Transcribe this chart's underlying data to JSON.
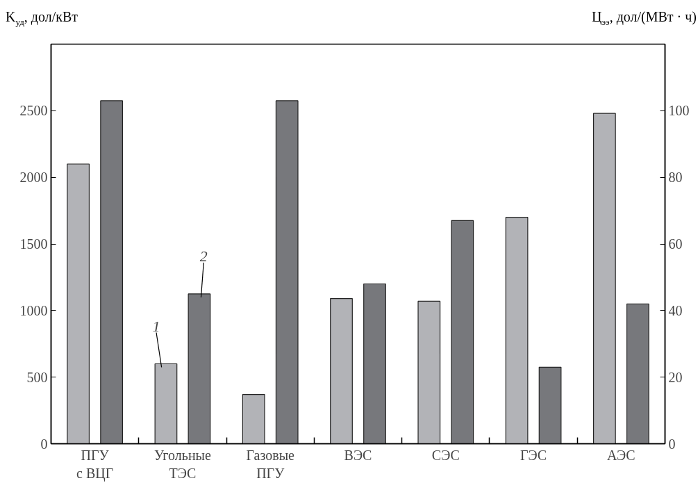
{
  "chart_data": {
    "type": "bar",
    "categories": [
      "ПГУ с ВЦГ",
      "Угольные ТЭС",
      "Газовые ПГУ",
      "ВЭС",
      "СЭС",
      "ГЭС",
      "АЭС"
    ],
    "series": [
      {
        "color": "#b2b3b7",
        "values": [
          2100,
          600,
          370,
          1090,
          1070,
          1700,
          2480
        ]
      },
      {
        "color": "#77787c",
        "axis": "y2",
        "values": [
          103,
          45,
          103,
          48,
          67,
          23,
          42
        ]
      }
    ],
    "ylabel": "K$_{уд}$, дол/кВт",
    "y2label": "Ц$_{ээ}$, дол/(МВт · ч)",
    "ylim": [
      0,
      3000
    ],
    "yticks": [
      0,
      500,
      1000,
      1500,
      2000,
      2500
    ],
    "y2lim": [
      0,
      120
    ],
    "y2ticks": [
      0,
      20,
      40,
      60,
      80,
      100
    ],
    "annotations": [
      "1",
      "2"
    ],
    "grid": false
  }
}
